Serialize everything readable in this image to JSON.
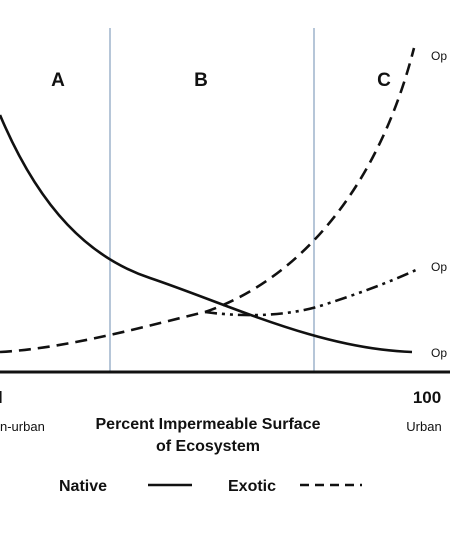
{
  "diagram": {
    "regions": [
      "A",
      "B",
      "C"
    ],
    "curve_end_labels": {
      "exotic": "Op",
      "mid": "Op",
      "native": "Op"
    },
    "x_axis": {
      "right_value": "100",
      "left_value_partial": "l",
      "left_category_partial": "n-urban",
      "right_category": "Urban",
      "title_line1": "Percent Impermeable Surface",
      "title_line2": "of Ecosystem"
    },
    "legend": [
      {
        "label": "Native",
        "line_style": "solid"
      },
      {
        "label": "Exotic",
        "line_style": "dashed"
      }
    ],
    "colors": {
      "curve": "#111111",
      "divider": "#8ea8c3",
      "axis": "#111111",
      "background": "#ffffff"
    }
  }
}
